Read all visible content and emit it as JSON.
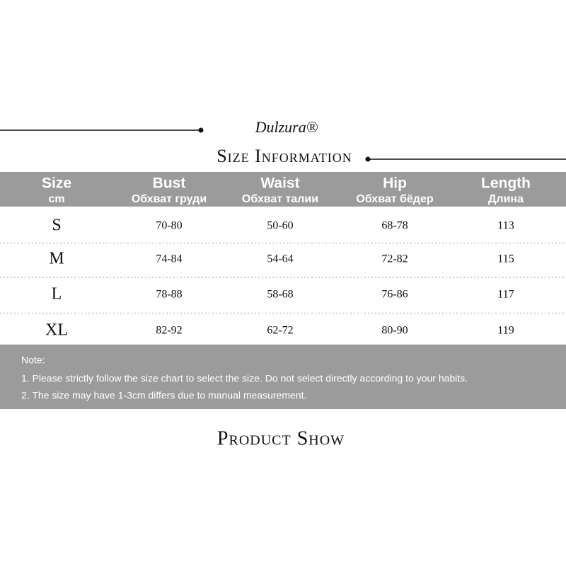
{
  "brand": "Dulzura®",
  "title": "Size Information",
  "table": {
    "headers": [
      [
        "Size",
        "cm"
      ],
      [
        "Bust",
        "Обхват груди"
      ],
      [
        "Waist",
        "Обхват талии"
      ],
      [
        "Hip",
        "Обхват бёдер"
      ],
      [
        "Length",
        "Длина"
      ]
    ],
    "rows": [
      [
        "S",
        "70-80",
        "50-60",
        "68-78",
        "113"
      ],
      [
        "M",
        "74-84",
        "54-64",
        "72-82",
        "115"
      ],
      [
        "L",
        "78-88",
        "58-68",
        "76-86",
        "117"
      ],
      [
        "XL",
        "82-92",
        "62-72",
        "80-90",
        "119"
      ]
    ]
  },
  "note": {
    "label": "Note:",
    "lines": [
      "1. Please strictly follow the size chart to select the size. Do not select directly according to your habits.",
      "2. The size may have 1-3cm differs due to manual measurement."
    ]
  },
  "footer": "Product Show"
}
